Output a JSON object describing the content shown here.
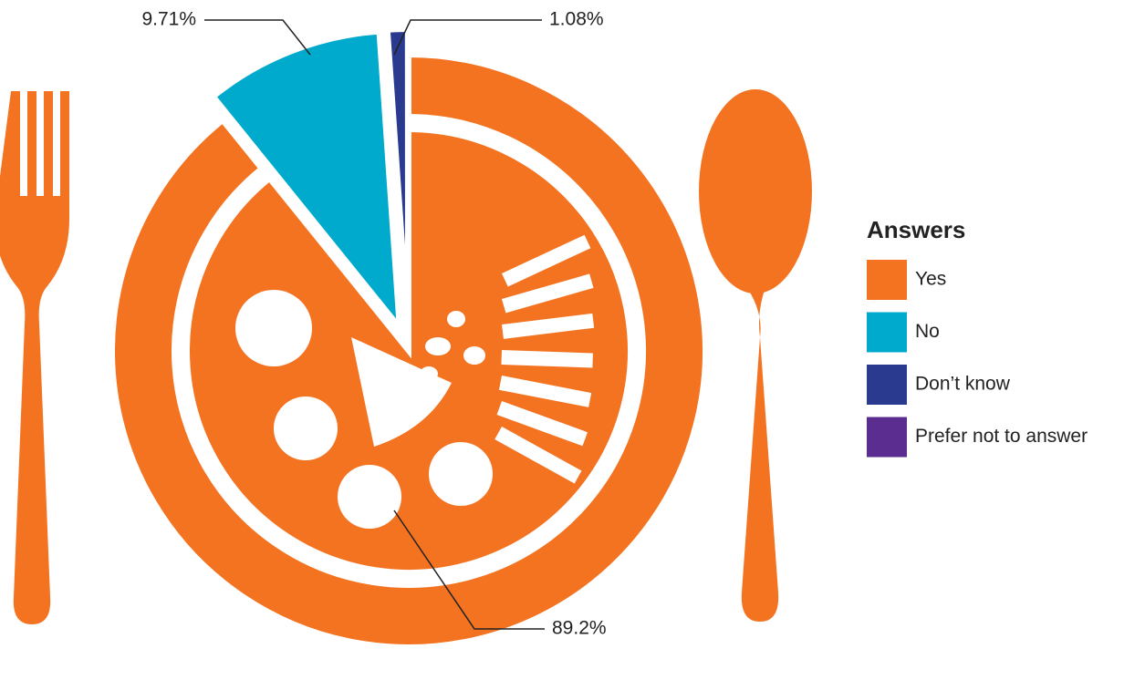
{
  "chart_data": {
    "type": "pie",
    "categories": [
      "Yes",
      "No",
      "Don’t know",
      "Prefer not to answer"
    ],
    "values": [
      89.2,
      9.71,
      1.08,
      0.01
    ],
    "value_labels": [
      "89.2%",
      "9.71%",
      "1.08%",
      null
    ],
    "colors": [
      "#f47321",
      "#00aacc",
      "#2a3b8f",
      "#5b2d91"
    ],
    "legend_title": "Answers",
    "legend": "right"
  }
}
